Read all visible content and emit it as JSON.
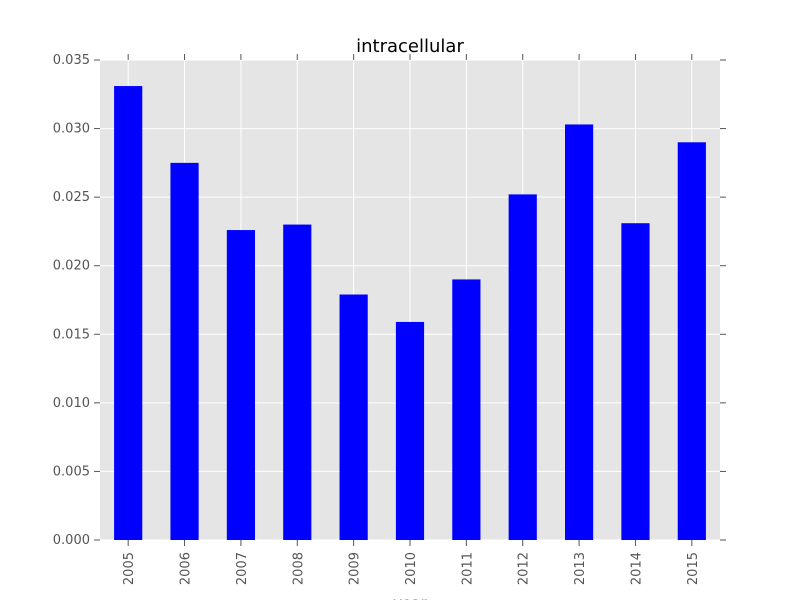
{
  "chart_data": {
    "type": "bar",
    "title": "intracellular",
    "xlabel": "year",
    "ylabel": "",
    "categories": [
      "2005",
      "2006",
      "2007",
      "2008",
      "2009",
      "2010",
      "2011",
      "2012",
      "2013",
      "2014",
      "2015"
    ],
    "values": [
      0.0331,
      0.0275,
      0.0226,
      0.023,
      0.0179,
      0.0159,
      0.019,
      0.0252,
      0.0303,
      0.0231,
      0.029
    ],
    "ylim": [
      0,
      0.035
    ],
    "yticks": [
      "0.000",
      "0.005",
      "0.010",
      "0.015",
      "0.020",
      "0.025",
      "0.030",
      "0.035"
    ],
    "grid": true,
    "colors": {
      "bar": "#0000ff",
      "plot_background": "#e5e5e5",
      "grid": "#ffffff"
    }
  }
}
